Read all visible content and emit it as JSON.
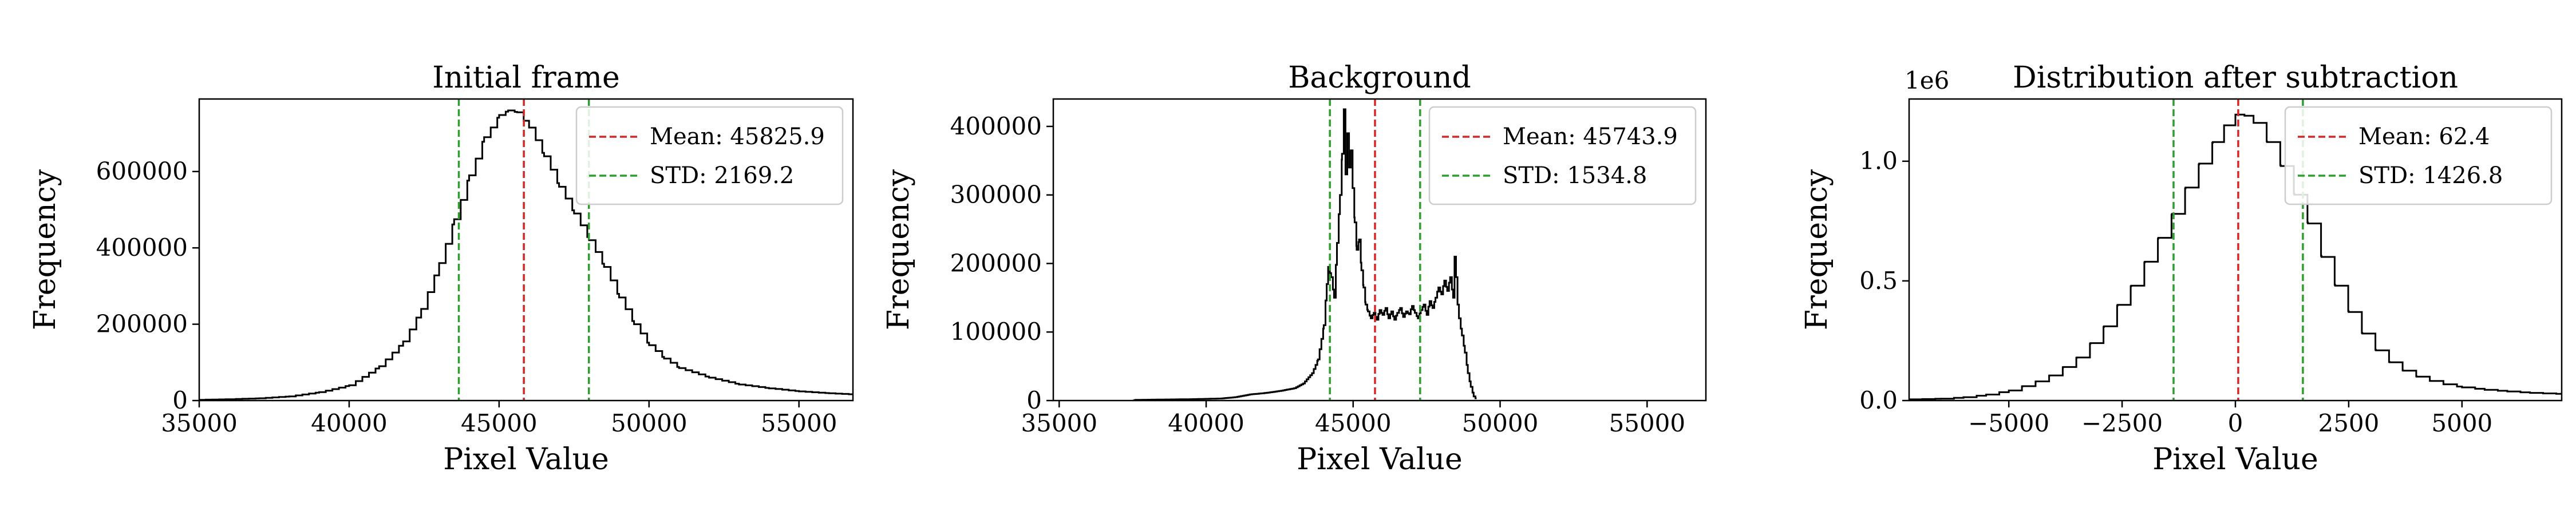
{
  "chart_data": [
    {
      "type": "histogram",
      "title": "Initial frame",
      "xlabel": "Pixel Value",
      "ylabel": "Frequency",
      "xlim": [
        35000,
        56800
      ],
      "ylim": [
        0,
        790000
      ],
      "xticks": [
        35000,
        40000,
        45000,
        50000,
        55000
      ],
      "xtick_labels": [
        "35000",
        "40000",
        "45000",
        "50000",
        "55000"
      ],
      "yticks": [
        0,
        200000,
        400000,
        600000
      ],
      "ytick_labels": [
        "0",
        "200000",
        "400000",
        "600000"
      ],
      "offset_label": "",
      "mean": 45825.9,
      "std": 2169.2,
      "vlines": [
        {
          "x": 45825.9,
          "color": "#d62728"
        },
        {
          "x": 43656.7,
          "color": "#2ca02c"
        },
        {
          "x": 47995.1,
          "color": "#2ca02c"
        }
      ],
      "legend": {
        "placement": "upper right",
        "entries": [
          {
            "label": "Mean: 45825.9",
            "color": "#d62728"
          },
          {
            "label": "STD: 2169.2",
            "color": "#2ca02c"
          }
        ]
      },
      "bin_width": 220,
      "hist": [
        [
          35000,
          2000
        ],
        [
          36000,
          3500
        ],
        [
          37000,
          6000
        ],
        [
          38000,
          11000
        ],
        [
          39000,
          22000
        ],
        [
          40000,
          40000
        ],
        [
          41000,
          90000
        ],
        [
          41800,
          155000
        ],
        [
          42400,
          240000
        ],
        [
          43000,
          360000
        ],
        [
          43500,
          475000
        ],
        [
          44000,
          590000
        ],
        [
          44500,
          690000
        ],
        [
          45000,
          748000
        ],
        [
          45300,
          760000
        ],
        [
          45600,
          755000
        ],
        [
          46000,
          715000
        ],
        [
          46500,
          640000
        ],
        [
          47000,
          560000
        ],
        [
          47500,
          490000
        ],
        [
          48000,
          420000
        ],
        [
          48500,
          350000
        ],
        [
          49000,
          270000
        ],
        [
          49500,
          200000
        ],
        [
          50000,
          145000
        ],
        [
          50500,
          110000
        ],
        [
          51000,
          85000
        ],
        [
          52000,
          60000
        ],
        [
          53000,
          42000
        ],
        [
          54000,
          32000
        ],
        [
          55000,
          24000
        ],
        [
          56000,
          19000
        ],
        [
          56800,
          16000
        ]
      ]
    },
    {
      "type": "histogram",
      "title": "Background",
      "xlabel": "Pixel Value",
      "ylabel": "Frequency",
      "xlim": [
        34800,
        57000
      ],
      "ylim": [
        0,
        440000
      ],
      "xticks": [
        35000,
        40000,
        45000,
        50000,
        55000
      ],
      "xtick_labels": [
        "35000",
        "40000",
        "45000",
        "50000",
        "55000"
      ],
      "yticks": [
        0,
        100000,
        200000,
        300000,
        400000
      ],
      "ytick_labels": [
        "0",
        "100000",
        "200000",
        "300000",
        "400000"
      ],
      "offset_label": "",
      "mean": 45743.9,
      "std": 1534.8,
      "vlines": [
        {
          "x": 45743.9,
          "color": "#d62728"
        },
        {
          "x": 44209.1,
          "color": "#2ca02c"
        },
        {
          "x": 47278.7,
          "color": "#2ca02c"
        }
      ],
      "legend": {
        "placement": "upper right",
        "entries": [
          {
            "label": "Mean: 45743.9",
            "color": "#d62728"
          },
          {
            "label": "STD: 1534.8",
            "color": "#2ca02c"
          }
        ]
      },
      "bin_width": 60,
      "hist": [
        [
          37500,
          0
        ],
        [
          37600,
          1000
        ],
        [
          38500,
          1500
        ],
        [
          39500,
          2000
        ],
        [
          40500,
          3000
        ],
        [
          41000,
          5000
        ],
        [
          41500,
          9000
        ],
        [
          42000,
          11000
        ],
        [
          42500,
          14000
        ],
        [
          43000,
          18000
        ],
        [
          43300,
          25000
        ],
        [
          43600,
          40000
        ],
        [
          43800,
          60000
        ],
        [
          44000,
          110000
        ],
        [
          44100,
          170000
        ],
        [
          44150,
          195000
        ],
        [
          44250,
          180000
        ],
        [
          44350,
          150000
        ],
        [
          44450,
          230000
        ],
        [
          44550,
          300000
        ],
        [
          44620,
          360000
        ],
        [
          44680,
          425000
        ],
        [
          44740,
          330000
        ],
        [
          44800,
          390000
        ],
        [
          44860,
          340000
        ],
        [
          44920,
          365000
        ],
        [
          44980,
          310000
        ],
        [
          45050,
          260000
        ],
        [
          45120,
          220000
        ],
        [
          45200,
          235000
        ],
        [
          45280,
          190000
        ],
        [
          45350,
          165000
        ],
        [
          45420,
          140000
        ],
        [
          45500,
          130000
        ],
        [
          45600,
          120000
        ],
        [
          45700,
          128000
        ],
        [
          45800,
          118000
        ],
        [
          45900,
          132000
        ],
        [
          46000,
          125000
        ],
        [
          46100,
          135000
        ],
        [
          46200,
          120000
        ],
        [
          46300,
          130000
        ],
        [
          46400,
          118000
        ],
        [
          46500,
          128000
        ],
        [
          46600,
          135000
        ],
        [
          46700,
          122000
        ],
        [
          46800,
          130000
        ],
        [
          46900,
          126000
        ],
        [
          47000,
          138000
        ],
        [
          47100,
          128000
        ],
        [
          47200,
          120000
        ],
        [
          47300,
          132000
        ],
        [
          47400,
          140000
        ],
        [
          47500,
          125000
        ],
        [
          47600,
          145000
        ],
        [
          47700,
          135000
        ],
        [
          47800,
          150000
        ],
        [
          47900,
          165000
        ],
        [
          48000,
          155000
        ],
        [
          48100,
          175000
        ],
        [
          48200,
          160000
        ],
        [
          48300,
          180000
        ],
        [
          48400,
          150000
        ],
        [
          48450,
          210000
        ],
        [
          48500,
          180000
        ],
        [
          48550,
          140000
        ],
        [
          48600,
          120000
        ],
        [
          48700,
          95000
        ],
        [
          48800,
          70000
        ],
        [
          48900,
          40000
        ],
        [
          49000,
          20000
        ],
        [
          49100,
          6000
        ],
        [
          49200,
          1500
        ]
      ]
    },
    {
      "type": "histogram",
      "title": "Distribution after subtraction",
      "xlabel": "Pixel Value",
      "ylabel": "Frequency",
      "xlim": [
        -7200,
        7200
      ],
      "ylim": [
        0,
        1260000
      ],
      "xticks": [
        -5000,
        -2500,
        0,
        2500,
        5000
      ],
      "xtick_labels": [
        "−5000",
        "−2500",
        "0",
        "2500",
        "5000"
      ],
      "yticks": [
        0,
        500000,
        1000000
      ],
      "ytick_labels": [
        "0.0",
        "0.5",
        "1.0"
      ],
      "offset_label": "1e6",
      "mean": 62.4,
      "std": 1426.8,
      "vlines": [
        {
          "x": 62.4,
          "color": "#d62728"
        },
        {
          "x": -1364.4,
          "color": "#2ca02c"
        },
        {
          "x": 1489.2,
          "color": "#2ca02c"
        }
      ],
      "legend": {
        "placement": "upper right",
        "entries": [
          {
            "label": "Mean: 62.4",
            "color": "#d62728"
          },
          {
            "label": "STD: 1426.8",
            "color": "#2ca02c"
          }
        ]
      },
      "bin_width": 290,
      "hist": [
        [
          -7200,
          5000
        ],
        [
          -6500,
          8000
        ],
        [
          -6000,
          14000
        ],
        [
          -5500,
          25000
        ],
        [
          -5000,
          42000
        ],
        [
          -4700,
          60000
        ],
        [
          -4400,
          80000
        ],
        [
          -4100,
          105000
        ],
        [
          -3800,
          140000
        ],
        [
          -3500,
          180000
        ],
        [
          -3200,
          240000
        ],
        [
          -2900,
          310000
        ],
        [
          -2600,
          400000
        ],
        [
          -2300,
          480000
        ],
        [
          -2000,
          580000
        ],
        [
          -1700,
          680000
        ],
        [
          -1400,
          780000
        ],
        [
          -1100,
          890000
        ],
        [
          -800,
          990000
        ],
        [
          -500,
          1080000
        ],
        [
          -250,
          1150000
        ],
        [
          0,
          1195000
        ],
        [
          200,
          1190000
        ],
        [
          400,
          1160000
        ],
        [
          700,
          1080000
        ],
        [
          1000,
          980000
        ],
        [
          1300,
          860000
        ],
        [
          1600,
          740000
        ],
        [
          1900,
          600000
        ],
        [
          2200,
          480000
        ],
        [
          2500,
          370000
        ],
        [
          2800,
          280000
        ],
        [
          3100,
          210000
        ],
        [
          3400,
          160000
        ],
        [
          3700,
          125000
        ],
        [
          4000,
          100000
        ],
        [
          4300,
          82000
        ],
        [
          4600,
          68000
        ],
        [
          5000,
          55000
        ],
        [
          5500,
          45000
        ],
        [
          6000,
          38000
        ],
        [
          6500,
          32000
        ],
        [
          7200,
          27000
        ]
      ]
    }
  ]
}
